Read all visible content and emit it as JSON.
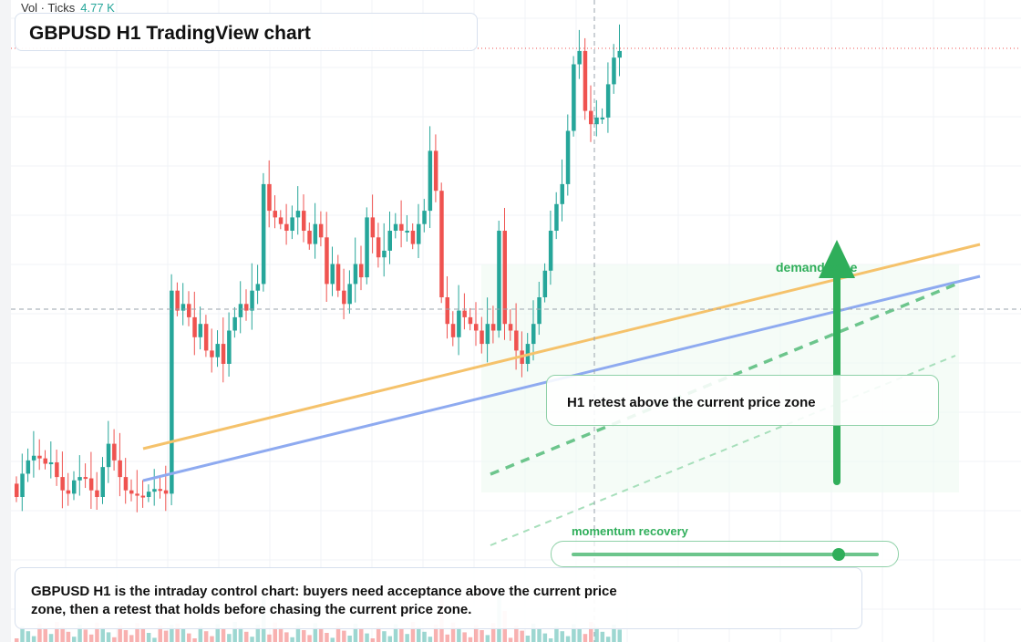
{
  "volume_legend": {
    "label": "Vol · Ticks",
    "value": "4.77 K"
  },
  "title": "GBPUSD H1 TradingView chart",
  "annotations": {
    "retest_note": "H1 retest above the current price zone",
    "zone_label": "demand zone",
    "momentum_label": "momentum recovery",
    "momentum_level": 0.87
  },
  "caption": "GBPUSD H1 is the intraday control chart: buyers need acceptance above the current price zone, then a retest that holds before chasing the current price zone.",
  "colors": {
    "up": "#26a69a",
    "down": "#ef5350",
    "trend_orange": "#f5c26b",
    "trend_blue": "#8eaaf0",
    "accent_green": "#2fae5a",
    "zone_fill": "#eefaf2"
  },
  "chart_data": {
    "type": "candlestick",
    "timeframe": "H1",
    "symbol": "GBPUSD",
    "series_close_relative": [
      0.0,
      0.35,
      0.55,
      0.62,
      0.58,
      0.5,
      0.52,
      0.3,
      0.1,
      0.05,
      0.25,
      0.3,
      0.28,
      0.1,
      0.0,
      0.45,
      0.8,
      0.55,
      0.3,
      0.1,
      0.05,
      0.02,
      0.0,
      0.08,
      0.12,
      0.1,
      0.05,
      3.1,
      2.8,
      2.9,
      2.7,
      2.4,
      2.6,
      2.2,
      2.1,
      2.3,
      2.0,
      2.5,
      2.7,
      2.9,
      2.8,
      3.1,
      3.2,
      4.7,
      4.3,
      4.2,
      4.1,
      4.0,
      4.2,
      4.3,
      4.0,
      3.8,
      4.1,
      3.9,
      3.2,
      3.5,
      3.1,
      2.9,
      3.2,
      3.5,
      3.3,
      4.2,
      3.9,
      3.6,
      3.7,
      4.0,
      4.1,
      4.0,
      4.0,
      3.8,
      4.1,
      4.3,
      5.2,
      4.6,
      3.0,
      2.6,
      2.4,
      2.8,
      2.7,
      2.6,
      2.5,
      2.3,
      2.6,
      2.5,
      4.0,
      2.6,
      2.5,
      2.2,
      2.0,
      2.3,
      2.6,
      3.0,
      3.4,
      4.0,
      4.4,
      4.7,
      5.5,
      6.5,
      6.7,
      5.8,
      5.6,
      5.7,
      5.7,
      6.2,
      6.6,
      6.7
    ],
    "annotations": [
      "demand zone",
      "momentum recovery",
      "H1 retest above the current price zone"
    ]
  }
}
